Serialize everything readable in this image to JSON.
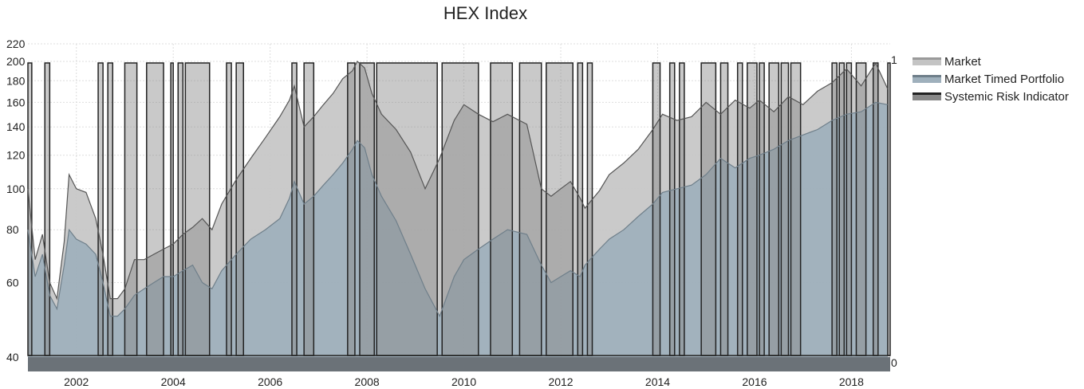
{
  "chart_data": {
    "type": "area",
    "title": "HEX Index",
    "xlabel": "",
    "ylabel": "",
    "ylim": [
      40,
      220
    ],
    "y_scale": "log",
    "y_ticks": [
      40,
      60,
      80,
      100,
      120,
      140,
      160,
      180,
      200,
      220
    ],
    "x_range": [
      2001.0,
      2018.8
    ],
    "x_ticks": [
      "2002",
      "2004",
      "2006",
      "2008",
      "2010",
      "2012",
      "2014",
      "2016",
      "2018"
    ],
    "secondary_y_ticks": [
      "0",
      "1"
    ],
    "grid": true,
    "legend_position": "right",
    "colors": {
      "market": "#c4c4c4",
      "market_line": "#555555",
      "timed": "#9fb0bc",
      "timed_line": "#6f7f8a",
      "risk": "#888888",
      "risk_line": "#222222",
      "base": "#6b7278"
    },
    "series": [
      {
        "name": "Market",
        "x": [
          2001.0,
          2001.15,
          2001.3,
          2001.45,
          2001.6,
          2001.75,
          2001.85,
          2002.0,
          2002.2,
          2002.4,
          2002.55,
          2002.7,
          2002.85,
          2003.0,
          2003.2,
          2003.4,
          2003.6,
          2003.8,
          2004.0,
          2004.2,
          2004.4,
          2004.6,
          2004.8,
          2005.0,
          2005.3,
          2005.6,
          2005.9,
          2006.2,
          2006.4,
          2006.5,
          2006.7,
          2006.9,
          2007.1,
          2007.3,
          2007.5,
          2007.7,
          2007.8,
          2007.95,
          2008.1,
          2008.3,
          2008.6,
          2008.9,
          2009.2,
          2009.5,
          2009.8,
          2010.0,
          2010.3,
          2010.6,
          2010.9,
          2011.3,
          2011.6,
          2011.8,
          2012.0,
          2012.2,
          2012.4,
          2012.5,
          2012.8,
          2013.0,
          2013.3,
          2013.6,
          2013.9,
          2014.1,
          2014.4,
          2014.7,
          2015.0,
          2015.3,
          2015.6,
          2015.9,
          2016.1,
          2016.4,
          2016.7,
          2017.0,
          2017.3,
          2017.6,
          2017.9,
          2018.2,
          2018.5,
          2018.75
        ],
        "values": [
          100,
          68,
          78,
          60,
          55,
          75,
          108,
          100,
          98,
          85,
          70,
          55,
          55,
          58,
          68,
          68,
          70,
          72,
          74,
          78,
          81,
          85,
          80,
          92,
          105,
          118,
          132,
          148,
          162,
          175,
          140,
          148,
          158,
          168,
          182,
          190,
          200,
          193,
          168,
          150,
          138,
          122,
          100,
          118,
          145,
          158,
          150,
          144,
          150,
          142,
          100,
          96,
          100,
          104,
          95,
          90,
          99,
          108,
          115,
          124,
          138,
          150,
          145,
          148,
          160,
          150,
          162,
          155,
          162,
          152,
          165,
          158,
          170,
          178,
          192,
          175,
          198,
          172
        ]
      },
      {
        "name": "Market Timed Portfolio",
        "x": [
          2001.0,
          2001.15,
          2001.3,
          2001.45,
          2001.6,
          2001.75,
          2001.85,
          2002.0,
          2002.2,
          2002.4,
          2002.55,
          2002.7,
          2002.85,
          2003.0,
          2003.2,
          2003.4,
          2003.6,
          2003.8,
          2004.0,
          2004.2,
          2004.4,
          2004.6,
          2004.8,
          2005.0,
          2005.3,
          2005.6,
          2005.9,
          2006.2,
          2006.4,
          2006.5,
          2006.7,
          2006.9,
          2007.1,
          2007.3,
          2007.5,
          2007.7,
          2007.8,
          2007.95,
          2008.1,
          2008.3,
          2008.6,
          2008.9,
          2009.2,
          2009.5,
          2009.8,
          2010.0,
          2010.3,
          2010.6,
          2010.9,
          2011.3,
          2011.6,
          2011.8,
          2012.0,
          2012.2,
          2012.4,
          2012.5,
          2012.8,
          2013.0,
          2013.3,
          2013.6,
          2013.9,
          2014.1,
          2014.4,
          2014.7,
          2015.0,
          2015.3,
          2015.6,
          2015.9,
          2016.1,
          2016.4,
          2016.7,
          2017.0,
          2017.3,
          2017.6,
          2017.9,
          2018.2,
          2018.5,
          2018.75
        ],
        "values": [
          80,
          62,
          70,
          56,
          52,
          66,
          80,
          76,
          74,
          70,
          60,
          50,
          50,
          52,
          56,
          58,
          60,
          62,
          62,
          64,
          66,
          60,
          58,
          64,
          70,
          76,
          80,
          85,
          95,
          104,
          92,
          96,
          102,
          108,
          115,
          124,
          130,
          125,
          108,
          96,
          84,
          70,
          58,
          50,
          62,
          68,
          72,
          76,
          80,
          78,
          66,
          60,
          62,
          64,
          62,
          66,
          72,
          76,
          80,
          86,
          92,
          98,
          100,
          102,
          108,
          118,
          112,
          118,
          120,
          124,
          130,
          134,
          138,
          145,
          150,
          152,
          160,
          158
        ]
      },
      {
        "name": "Systemic Risk Indicator",
        "scale": "secondary (0-1)",
        "intervals_value_1": [
          [
            2001.0,
            2001.08
          ],
          [
            2001.35,
            2001.45
          ],
          [
            2002.45,
            2002.55
          ],
          [
            2002.65,
            2002.75
          ],
          [
            2003.0,
            2003.25
          ],
          [
            2003.45,
            2003.8
          ],
          [
            2003.95,
            2004.0
          ],
          [
            2004.1,
            2004.2
          ],
          [
            2004.25,
            2004.75
          ],
          [
            2005.1,
            2005.2
          ],
          [
            2005.3,
            2005.45
          ],
          [
            2006.45,
            2006.55
          ],
          [
            2006.7,
            2006.9
          ],
          [
            2007.6,
            2007.75
          ],
          [
            2007.85,
            2008.15
          ],
          [
            2008.2,
            2009.45
          ],
          [
            2009.55,
            2010.3
          ],
          [
            2010.55,
            2011.0
          ],
          [
            2011.15,
            2011.6
          ],
          [
            2011.7,
            2012.25
          ],
          [
            2012.35,
            2012.45
          ],
          [
            2012.55,
            2012.65
          ],
          [
            2013.9,
            2014.05
          ],
          [
            2014.25,
            2014.35
          ],
          [
            2014.45,
            2014.55
          ],
          [
            2014.9,
            2015.2
          ],
          [
            2015.3,
            2015.45
          ],
          [
            2015.65,
            2015.75
          ],
          [
            2015.85,
            2016.05
          ],
          [
            2016.1,
            2016.2
          ],
          [
            2016.3,
            2016.5
          ],
          [
            2016.55,
            2016.7
          ],
          [
            2016.75,
            2016.95
          ],
          [
            2017.6,
            2017.7
          ],
          [
            2017.75,
            2017.85
          ],
          [
            2017.9,
            2018.0
          ],
          [
            2018.1,
            2018.3
          ],
          [
            2018.45,
            2018.55
          ],
          [
            2018.75,
            2018.8
          ]
        ]
      }
    ]
  }
}
